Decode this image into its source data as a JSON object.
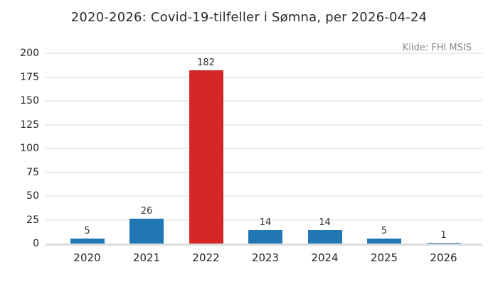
{
  "header": {
    "title": "2020-2026: Covid-19-tilfeller i Sømna, per 2026-04-24",
    "source": "Kilde: FHI MSIS"
  },
  "chart_data": {
    "type": "bar",
    "title": "2020-2026: Covid-19-tilfeller i Sømna, per 2026-04-24",
    "source_annotation": "Kilde: FHI MSIS",
    "categories": [
      "2020",
      "2021",
      "2022",
      "2023",
      "2024",
      "2025",
      "2026"
    ],
    "values": [
      5,
      26,
      182,
      14,
      14,
      5,
      1
    ],
    "bar_colors": [
      "#2077b4",
      "#2077b4",
      "#d62728",
      "#2077b4",
      "#2077b4",
      "#2077b4",
      "#2077b4"
    ],
    "xlabel": "",
    "ylabel": "",
    "ylim": [
      0,
      200
    ],
    "yticks": [
      0,
      25,
      50,
      75,
      100,
      125,
      150,
      175,
      200
    ],
    "grid": "horizontal-only",
    "legend": "none",
    "value_labels_shown": true,
    "colors": {
      "bar_default": "#2077b4",
      "bar_highlight": "#d62728",
      "gridline": "#ececec",
      "baseline": "#dcdcdc",
      "title_text": "#2b2b2b",
      "tick_text": "#262626",
      "value_label_text": "#333333",
      "source_text": "#8a8a8a",
      "background": "#ffffff"
    }
  }
}
